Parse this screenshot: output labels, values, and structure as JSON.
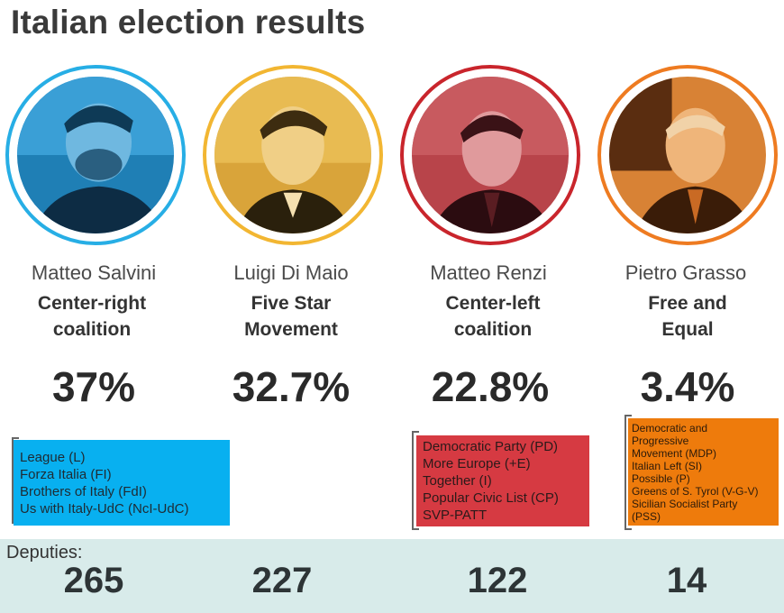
{
  "title": "Italian election results",
  "candidates": [
    {
      "name": "Matteo Salvini",
      "party": "Center-right\ncoalition",
      "percent": "37%",
      "ring_color": "#27aee5",
      "tint_color": "#2d9ad1",
      "deputies": "265",
      "parties": [
        "League (L)",
        "Forza Italia (FI)",
        "Brothers of Italy (FdI)",
        "Us with Italy-UdC (NcI-UdC)"
      ],
      "box_color": "#08b0f0"
    },
    {
      "name": "Luigi Di Maio",
      "party": "Five Star\nMovement",
      "percent": "32.7%",
      "ring_color": "#f2b632",
      "tint_color": "#e0a82a",
      "deputies": "227"
    },
    {
      "name": "Matteo Renzi",
      "party": "Center-left\ncoalition",
      "percent": "22.8%",
      "ring_color": "#c9252c",
      "tint_color": "#c2484d",
      "deputies": "122",
      "parties": [
        "Democratic Party (PD)",
        "More Europe (+E)",
        "Together (I)",
        "Popular Civic List (CP)",
        "SVP-PATT"
      ],
      "box_color": "#d63a42"
    },
    {
      "name": "Pietro Grasso",
      "party": "Free and\nEqual",
      "percent": "3.4%",
      "ring_color": "#ee7b21",
      "tint_color": "#dd8a3a",
      "deputies": "14",
      "parties": [
        "Democratic and\n  Progressive\n  Movement (MDP)",
        "Italian Left (SI)",
        "Possible (P)",
        "Greens of S. Tyrol (V-G-V)",
        "Sicilian Socialist Party\n  (PSS)"
      ],
      "box_color": "#ee7b0c"
    }
  ],
  "deputies_label": "Deputies:"
}
